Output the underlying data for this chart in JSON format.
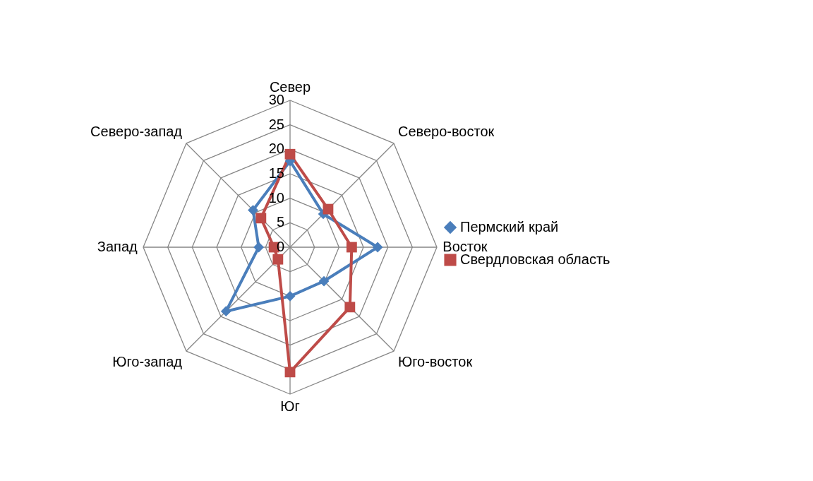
{
  "chart_data": {
    "type": "radar",
    "categories": [
      "Север",
      "Северо-восток",
      "Восток",
      "Юго-восток",
      "Юг",
      "Юго-запад",
      "Запад",
      "Северо-запад"
    ],
    "series": [
      {
        "name": "Пермский край",
        "color": "#4a7ebb",
        "marker": "diamond",
        "values": [
          17.6,
          9.6,
          17.9,
          9.8,
          10,
          18.5,
          6.4,
          10.7
        ]
      },
      {
        "name": "Свердловская область",
        "color": "#be4b48",
        "marker": "square",
        "values": [
          19,
          11,
          12.6,
          17.3,
          25.5,
          3.5,
          3.3,
          8.4
        ]
      }
    ],
    "ylim": [
      0,
      30
    ],
    "yticks": [
      0,
      5,
      10,
      15,
      20,
      25,
      30
    ],
    "grid": true,
    "legend": "right"
  }
}
